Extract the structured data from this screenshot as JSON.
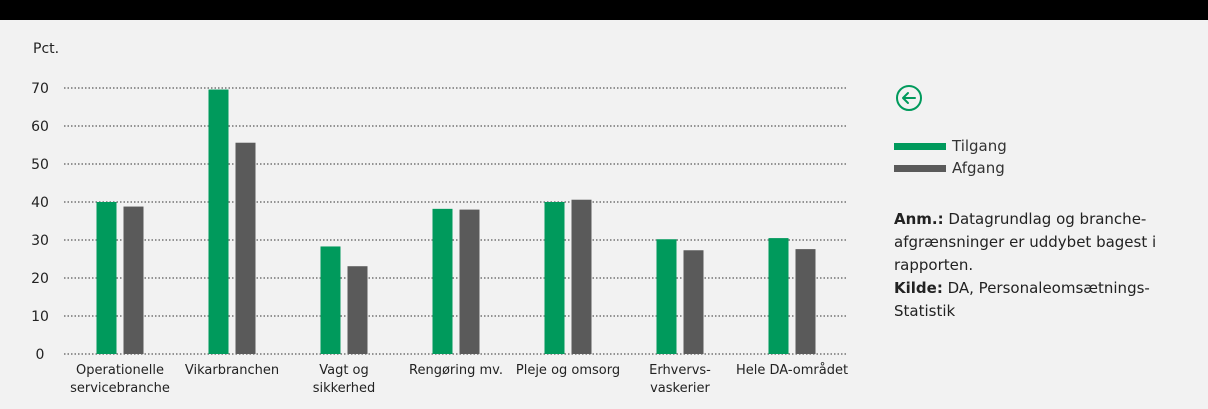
{
  "chart_data": {
    "type": "bar",
    "ylabel": "Pct.",
    "ylim": [
      0,
      70
    ],
    "yticks": [
      0,
      10,
      20,
      30,
      40,
      50,
      60,
      70
    ],
    "categories": [
      [
        "Operationelle",
        "servicebranche"
      ],
      [
        "Vikarbranchen"
      ],
      [
        "Vagt og",
        "sikkerhed"
      ],
      [
        "Rengøring mv."
      ],
      [
        "Pleje og omsorg"
      ],
      [
        "Erhvervs-",
        "vaskerier"
      ],
      [
        "Hele DA-området"
      ]
    ],
    "series": [
      {
        "name": "Tilgang",
        "color": "#009a5c",
        "values": [
          40,
          69.6,
          28.3,
          38.2,
          40,
          30.2,
          30.5
        ]
      },
      {
        "name": "Afgang",
        "color": "#5a5a5a",
        "values": [
          38.8,
          55.6,
          23.1,
          38,
          40.6,
          27.3,
          27.6
        ]
      }
    ],
    "legend_position": "right",
    "grid": "dotted horizontal"
  },
  "nav": {
    "back_icon": "arrow-left-circle-icon",
    "accent": "#009a5c"
  },
  "notes": {
    "anm_label": "Anm.:",
    "anm_text": " Datagrundlag og branche-afgrænsninger er uddybet bagest i rapporten.",
    "kilde_label": "Kilde:",
    "kilde_text": " DA, Personaleomsætnings-Statistik"
  }
}
